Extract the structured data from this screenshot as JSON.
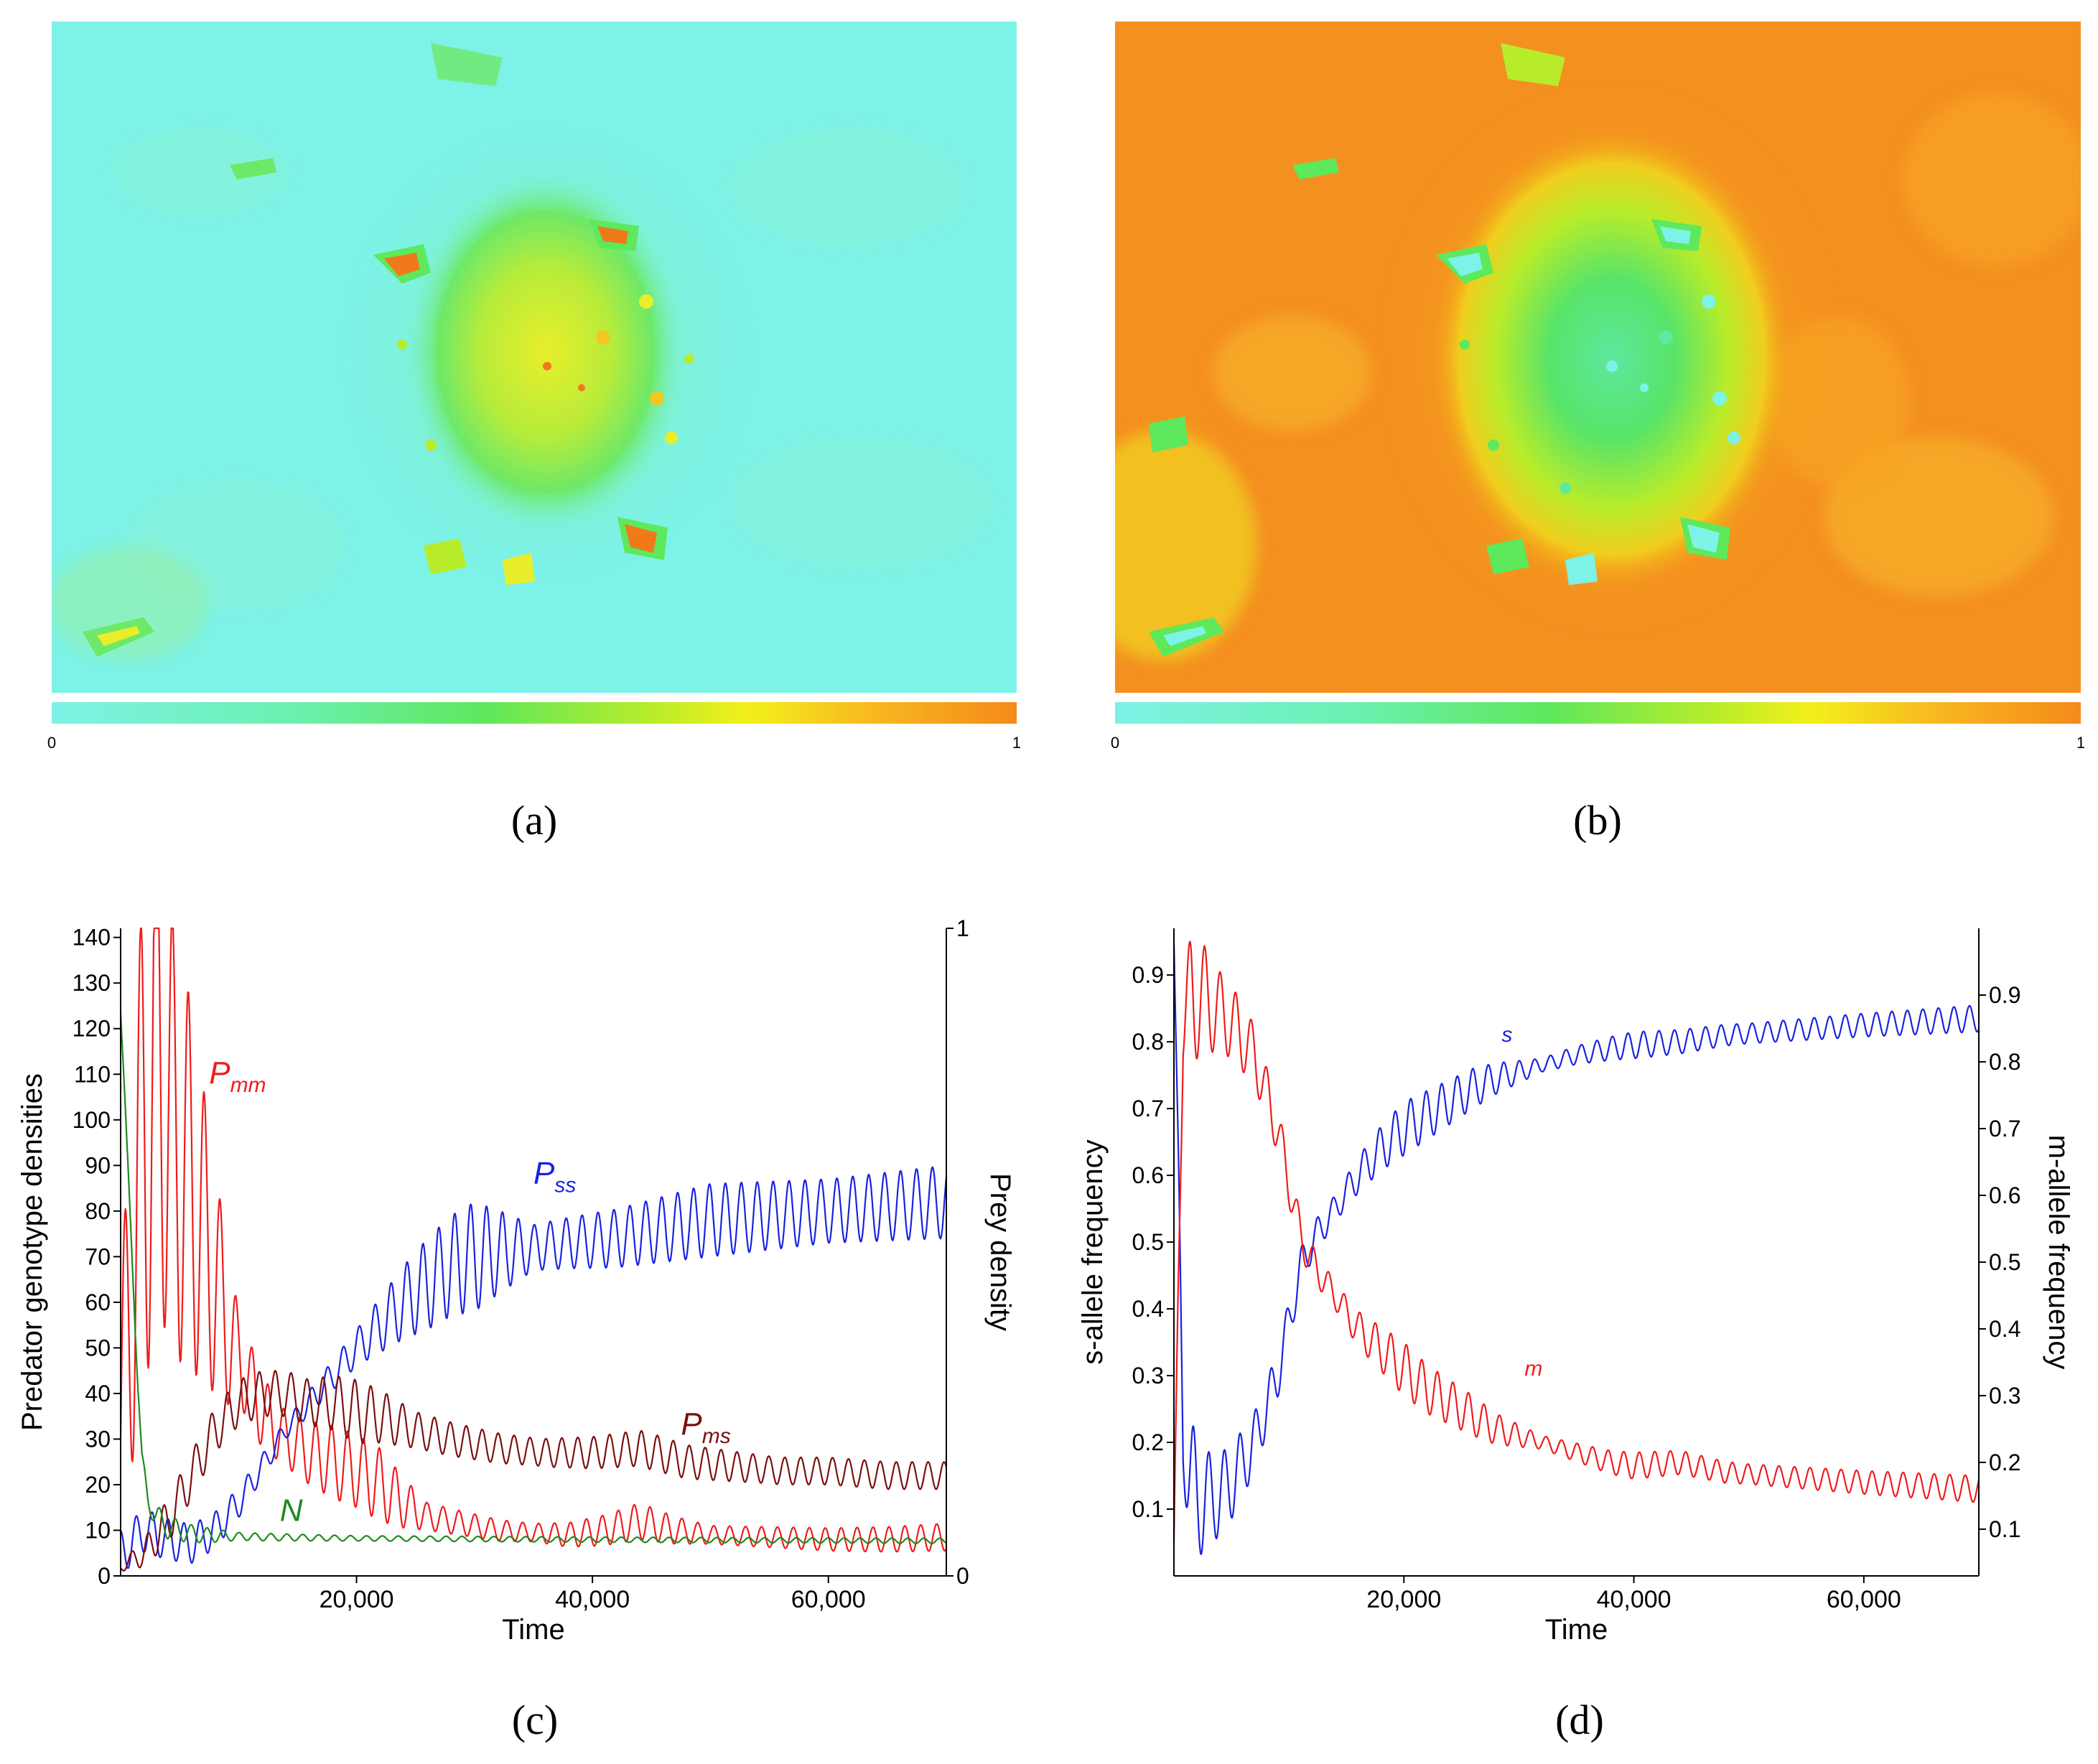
{
  "panels": {
    "a": {
      "caption": "(a)",
      "colorbar": {
        "min_label": "0",
        "max_label": "1"
      }
    },
    "b": {
      "caption": "(b)",
      "colorbar": {
        "min_label": "0",
        "max_label": "1"
      }
    },
    "c": {
      "caption": "(c)"
    },
    "d": {
      "caption": "(d)"
    }
  },
  "colors": {
    "heat_cyan": "#7df2e6",
    "heat_green": "#5ee85c",
    "heat_yellow": "#ecee1e",
    "heat_orange": "#f48a1a",
    "red": "#ef1c1c",
    "blue": "#1a22e0",
    "darkred": "#7a1010",
    "green": "#1f8a1f"
  },
  "chart_data": [
    {
      "id": "c",
      "type": "line",
      "title": "",
      "xlabel": "Time",
      "ylabel": "Predator genotype densities",
      "ylabel_right": "Prey density",
      "xlim": [
        0,
        70000
      ],
      "ylim": [
        0,
        142
      ],
      "ylim_right": [
        0,
        1
      ],
      "x_ticks": [
        20000,
        40000,
        60000
      ],
      "x_tick_labels": [
        "20,000",
        "40,000",
        "60,000"
      ],
      "y_ticks": [
        0,
        10,
        20,
        30,
        40,
        50,
        60,
        70,
        80,
        90,
        100,
        110,
        120,
        130,
        140
      ],
      "y_tick_labels": [
        "0",
        "10",
        "20",
        "30",
        "40",
        "50",
        "60",
        "70",
        "80",
        "90",
        "100",
        "110",
        "120",
        "130",
        "140"
      ],
      "y_right_ticks": [
        0,
        1
      ],
      "y_right_tick_labels": [
        "0",
        "1"
      ],
      "series": [
        {
          "name": "P_mm",
          "label_main": "P",
          "label_sub": "mm",
          "color": "red",
          "axis": "left",
          "label_at": [
            7500,
            108
          ],
          "points": [
            [
              0,
              30
            ],
            [
              1000,
              70
            ],
            [
              2000,
              95
            ],
            [
              3000,
              120
            ],
            [
              4000,
              100
            ],
            [
              5000,
              92
            ],
            [
              6000,
              85
            ],
            [
              7000,
              75
            ],
            [
              8000,
              65
            ],
            [
              9000,
              55
            ],
            [
              10000,
              48
            ],
            [
              11000,
              42
            ],
            [
              12000,
              36
            ],
            [
              14000,
              30
            ],
            [
              16000,
              27
            ],
            [
              18000,
              25
            ],
            [
              20000,
              23
            ],
            [
              22000,
              20
            ],
            [
              24000,
              16
            ],
            [
              26000,
              13
            ],
            [
              28000,
              12
            ],
            [
              30000,
              11
            ],
            [
              32000,
              10
            ],
            [
              35000,
              9.5
            ],
            [
              38000,
              9
            ],
            [
              41000,
              10
            ],
            [
              44000,
              12
            ],
            [
              47000,
              10
            ],
            [
              50000,
              9
            ],
            [
              55000,
              8.5
            ],
            [
              60000,
              8
            ],
            [
              65000,
              8
            ],
            [
              70000,
              8.5
            ]
          ],
          "oscillation": [
            [
              0,
              30
            ],
            [
              2000,
              60
            ],
            [
              6000,
              40
            ],
            [
              10000,
              10
            ],
            [
              14000,
              6
            ],
            [
              18000,
              8
            ],
            [
              22000,
              8
            ],
            [
              26000,
              3
            ],
            [
              35000,
              2
            ],
            [
              44000,
              4
            ],
            [
              50000,
              2
            ],
            [
              70000,
              3
            ]
          ]
        },
        {
          "name": "P_ss",
          "label_main": "P",
          "label_sub": "ss",
          "color": "blue",
          "axis": "left",
          "label_at": [
            35000,
            86
          ],
          "points": [
            [
              0,
              5
            ],
            [
              2000,
              10
            ],
            [
              4000,
              8
            ],
            [
              6000,
              7
            ],
            [
              8000,
              10
            ],
            [
              10000,
              16
            ],
            [
              12000,
              24
            ],
            [
              14000,
              32
            ],
            [
              16000,
              38
            ],
            [
              18000,
              44
            ],
            [
              20000,
              50
            ],
            [
              22000,
              55
            ],
            [
              24000,
              60
            ],
            [
              26000,
              64
            ],
            [
              28000,
              68
            ],
            [
              30000,
              70
            ],
            [
              32000,
              71
            ],
            [
              35000,
              72
            ],
            [
              38000,
              73
            ],
            [
              42000,
              74
            ],
            [
              46000,
              76
            ],
            [
              50000,
              78
            ],
            [
              55000,
              79
            ],
            [
              60000,
              80
            ],
            [
              65000,
              81
            ],
            [
              70000,
              82
            ]
          ],
          "oscillation": [
            [
              0,
              5
            ],
            [
              8000,
              4
            ],
            [
              14000,
              2
            ],
            [
              20000,
              4
            ],
            [
              26000,
              10
            ],
            [
              30000,
              12
            ],
            [
              35000,
              5
            ],
            [
              40000,
              6
            ],
            [
              50000,
              8
            ],
            [
              60000,
              7
            ],
            [
              70000,
              8
            ]
          ]
        },
        {
          "name": "P_ms",
          "label_main": "P",
          "label_sub": "ms",
          "color": "darkred",
          "axis": "left",
          "label_at": [
            47500,
            31
          ],
          "points": [
            [
              0,
              2
            ],
            [
              2000,
              5
            ],
            [
              4000,
              12
            ],
            [
              6000,
              22
            ],
            [
              8000,
              32
            ],
            [
              10000,
              38
            ],
            [
              12000,
              40
            ],
            [
              14000,
              40
            ],
            [
              16000,
              38
            ],
            [
              18000,
              38
            ],
            [
              20000,
              36
            ],
            [
              22000,
              35
            ],
            [
              25000,
              32
            ],
            [
              28000,
              30
            ],
            [
              32000,
              28
            ],
            [
              36000,
              27
            ],
            [
              40000,
              27
            ],
            [
              44000,
              28
            ],
            [
              48000,
              25
            ],
            [
              52000,
              24
            ],
            [
              56000,
              23
            ],
            [
              60000,
              23
            ],
            [
              65000,
              22
            ],
            [
              70000,
              22
            ]
          ],
          "oscillation": [
            [
              0,
              1
            ],
            [
              4000,
              5
            ],
            [
              10000,
              5
            ],
            [
              16000,
              5
            ],
            [
              20000,
              7
            ],
            [
              25000,
              4
            ],
            [
              35000,
              3
            ],
            [
              45000,
              4
            ],
            [
              55000,
              3
            ],
            [
              70000,
              3
            ]
          ]
        },
        {
          "name": "N",
          "label_main": "N",
          "label_sub": "",
          "color": "green",
          "axis": "right",
          "label_at": [
            13500,
            0.085
          ],
          "points": [
            [
              0,
              0.87
            ],
            [
              300,
              0.76
            ],
            [
              600,
              0.64
            ],
            [
              1000,
              0.48
            ],
            [
              1400,
              0.32
            ],
            [
              1800,
              0.18
            ],
            [
              2300,
              0.12
            ],
            [
              3000,
              0.09
            ],
            [
              4000,
              0.075
            ],
            [
              6000,
              0.065
            ],
            [
              8000,
              0.062
            ],
            [
              12000,
              0.06
            ],
            [
              20000,
              0.058
            ],
            [
              40000,
              0.056
            ],
            [
              70000,
              0.054
            ]
          ],
          "oscillation": [
            [
              0,
              0.0
            ],
            [
              3000,
              0.02
            ],
            [
              10000,
              0.006
            ],
            [
              20000,
              0.004
            ],
            [
              70000,
              0.004
            ]
          ]
        }
      ]
    },
    {
      "id": "d",
      "type": "line",
      "title": "",
      "xlabel": "Time",
      "ylabel": "s-allele frequency",
      "ylabel_right": "m-allele frequency",
      "xlim": [
        0,
        70000
      ],
      "ylim": [
        0,
        0.97
      ],
      "ylim_right": [
        0.03,
        1.0
      ],
      "x_ticks": [
        20000,
        40000,
        60000
      ],
      "x_tick_labels": [
        "20,000",
        "40,000",
        "60,000"
      ],
      "y_ticks": [
        0.1,
        0.2,
        0.3,
        0.4,
        0.5,
        0.6,
        0.7,
        0.8,
        0.9
      ],
      "y_tick_labels": [
        "0.1",
        "0.2",
        "0.3",
        "0.4",
        "0.5",
        "0.6",
        "0.7",
        "0.8",
        "0.9"
      ],
      "y_right_ticks": [
        0.1,
        0.2,
        0.3,
        0.4,
        0.5,
        0.6,
        0.7,
        0.8,
        0.9
      ],
      "y_right_tick_labels": [
        "0.1",
        "0.2",
        "0.3",
        "0.4",
        "0.5",
        "0.6",
        "0.7",
        "0.8",
        "0.9"
      ],
      "series": [
        {
          "name": "s",
          "label_main": "s",
          "label_sub": "",
          "color": "blue",
          "axis": "left",
          "label_at": [
            28500,
            0.8
          ],
          "points": [
            [
              0,
              0.95
            ],
            [
              400,
              0.6
            ],
            [
              800,
              0.2
            ],
            [
              1500,
              0.13
            ],
            [
              3000,
              0.11
            ],
            [
              5000,
              0.14
            ],
            [
              7000,
              0.2
            ],
            [
              9000,
              0.3
            ],
            [
              10000,
              0.38
            ],
            [
              11000,
              0.46
            ],
            [
              12000,
              0.5
            ],
            [
              14000,
              0.55
            ],
            [
              16000,
              0.6
            ],
            [
              18000,
              0.64
            ],
            [
              20000,
              0.67
            ],
            [
              22000,
              0.69
            ],
            [
              24000,
              0.71
            ],
            [
              26000,
              0.73
            ],
            [
              28000,
              0.745
            ],
            [
              30000,
              0.755
            ],
            [
              32000,
              0.765
            ],
            [
              35000,
              0.78
            ],
            [
              38000,
              0.79
            ],
            [
              40000,
              0.795
            ],
            [
              44000,
              0.8
            ],
            [
              48000,
              0.81
            ],
            [
              52000,
              0.815
            ],
            [
              56000,
              0.82
            ],
            [
              60000,
              0.825
            ],
            [
              65000,
              0.83
            ],
            [
              70000,
              0.835
            ]
          ],
          "oscillation": [
            [
              0,
              0
            ],
            [
              1500,
              0.1
            ],
            [
              4000,
              0.06
            ],
            [
              8000,
              0.04
            ],
            [
              14000,
              0.02
            ],
            [
              20000,
              0.04
            ],
            [
              26000,
              0.03
            ],
            [
              32000,
              0.01
            ],
            [
              40000,
              0.02
            ],
            [
              50000,
              0.015
            ],
            [
              70000,
              0.02
            ]
          ]
        },
        {
          "name": "m",
          "label_main": "m",
          "label_sub": "",
          "color": "red",
          "axis": "right",
          "label_at": [
            30500,
            0.33
          ],
          "points": [
            [
              0,
              0.08
            ],
            [
              400,
              0.5
            ],
            [
              800,
              0.85
            ],
            [
              1500,
              0.9
            ],
            [
              3000,
              0.89
            ],
            [
              5000,
              0.86
            ],
            [
              7000,
              0.81
            ],
            [
              9000,
              0.7
            ],
            [
              10000,
              0.62
            ],
            [
              11000,
              0.54
            ],
            [
              12000,
              0.5
            ],
            [
              14000,
              0.45
            ],
            [
              16000,
              0.4
            ],
            [
              18000,
              0.37
            ],
            [
              20000,
              0.34
            ],
            [
              22000,
              0.31
            ],
            [
              24000,
              0.29
            ],
            [
              26000,
              0.27
            ],
            [
              28000,
              0.25
            ],
            [
              30000,
              0.24
            ],
            [
              32000,
              0.23
            ],
            [
              35000,
              0.215
            ],
            [
              38000,
              0.2
            ],
            [
              40000,
              0.195
            ],
            [
              44000,
              0.2
            ],
            [
              48000,
              0.185
            ],
            [
              52000,
              0.18
            ],
            [
              56000,
              0.175
            ],
            [
              60000,
              0.17
            ],
            [
              65000,
              0.165
            ],
            [
              70000,
              0.16
            ]
          ],
          "oscillation": [
            [
              0,
              0
            ],
            [
              1500,
              0.1
            ],
            [
              4000,
              0.06
            ],
            [
              8000,
              0.04
            ],
            [
              14000,
              0.02
            ],
            [
              20000,
              0.04
            ],
            [
              26000,
              0.03
            ],
            [
              32000,
              0.01
            ],
            [
              40000,
              0.02
            ],
            [
              50000,
              0.015
            ],
            [
              70000,
              0.02
            ]
          ]
        }
      ]
    }
  ]
}
